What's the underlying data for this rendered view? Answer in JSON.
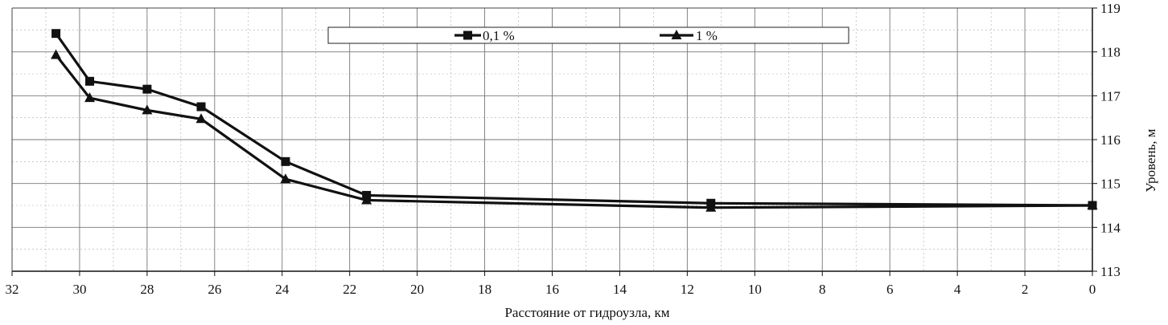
{
  "chart_data": {
    "type": "line",
    "xlabel": "Расстояние от гидроузла, км",
    "ylabel": "Уровень, м",
    "xlim": [
      32,
      0
    ],
    "ylim": [
      113,
      119
    ],
    "x_reversed": true,
    "y_axis_side": "right",
    "grid": true,
    "legend_position": "top",
    "x_ticks": [
      "32",
      "30",
      "28",
      "26",
      "24",
      "22",
      "20",
      "18",
      "16",
      "14",
      "12",
      "10",
      "8",
      "6",
      "4",
      "2",
      "0"
    ],
    "y_ticks": [
      "113",
      "114",
      "115",
      "116",
      "117",
      "118",
      "119"
    ],
    "series": [
      {
        "name": "0,1 %",
        "marker": "square",
        "x": [
          30.7,
          29.7,
          28.0,
          26.4,
          23.9,
          21.5,
          11.3,
          0
        ],
        "y": [
          118.42,
          117.33,
          117.15,
          116.75,
          115.5,
          114.73,
          114.55,
          114.5
        ]
      },
      {
        "name": "1 %",
        "marker": "triangle",
        "x": [
          30.7,
          29.7,
          28.0,
          26.4,
          23.9,
          21.5,
          11.3,
          0
        ],
        "y": [
          117.93,
          116.95,
          116.67,
          116.47,
          115.1,
          114.62,
          114.45,
          114.5
        ]
      }
    ]
  }
}
